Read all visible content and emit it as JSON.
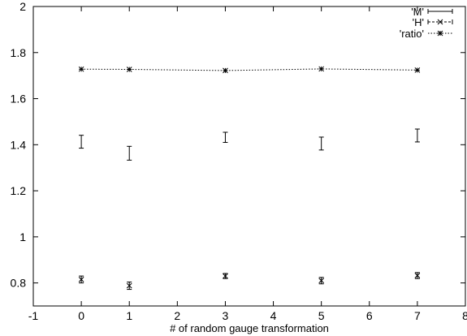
{
  "chart_data": {
    "type": "scatter",
    "xlabel": "# of random gauge transformation",
    "ylabel": "",
    "xlim": [
      -1,
      8
    ],
    "ylim": [
      0.7,
      2.0
    ],
    "x_ticks": [
      -1,
      0,
      1,
      2,
      3,
      4,
      5,
      6,
      7,
      8
    ],
    "y_ticks": [
      0.8,
      1,
      1.2,
      1.4,
      1.6,
      1.8,
      2
    ],
    "legend_position": "top-right",
    "grid": false,
    "series": [
      {
        "name": "'M'",
        "style": "errorbars",
        "points": [
          {
            "x": 0,
            "y": 1.413,
            "err": 0.028
          },
          {
            "x": 1,
            "y": 1.363,
            "err": 0.03
          },
          {
            "x": 3,
            "y": 1.432,
            "err": 0.022
          },
          {
            "x": 5,
            "y": 1.405,
            "err": 0.028
          },
          {
            "x": 7,
            "y": 1.44,
            "err": 0.028
          }
        ]
      },
      {
        "name": "'H'",
        "style": "errorbars",
        "points": [
          {
            "x": 0,
            "y": 0.815,
            "err": 0.015
          },
          {
            "x": 1,
            "y": 0.788,
            "err": 0.016
          },
          {
            "x": 3,
            "y": 0.83,
            "err": 0.011
          },
          {
            "x": 5,
            "y": 0.81,
            "err": 0.014
          },
          {
            "x": 7,
            "y": 0.832,
            "err": 0.013
          }
        ]
      },
      {
        "name": "'ratio'",
        "style": "dotted-line",
        "points": [
          {
            "x": 0,
            "y": 1.728
          },
          {
            "x": 1,
            "y": 1.727
          },
          {
            "x": 3,
            "y": 1.722
          },
          {
            "x": 5,
            "y": 1.729
          },
          {
            "x": 7,
            "y": 1.724
          }
        ]
      }
    ]
  }
}
